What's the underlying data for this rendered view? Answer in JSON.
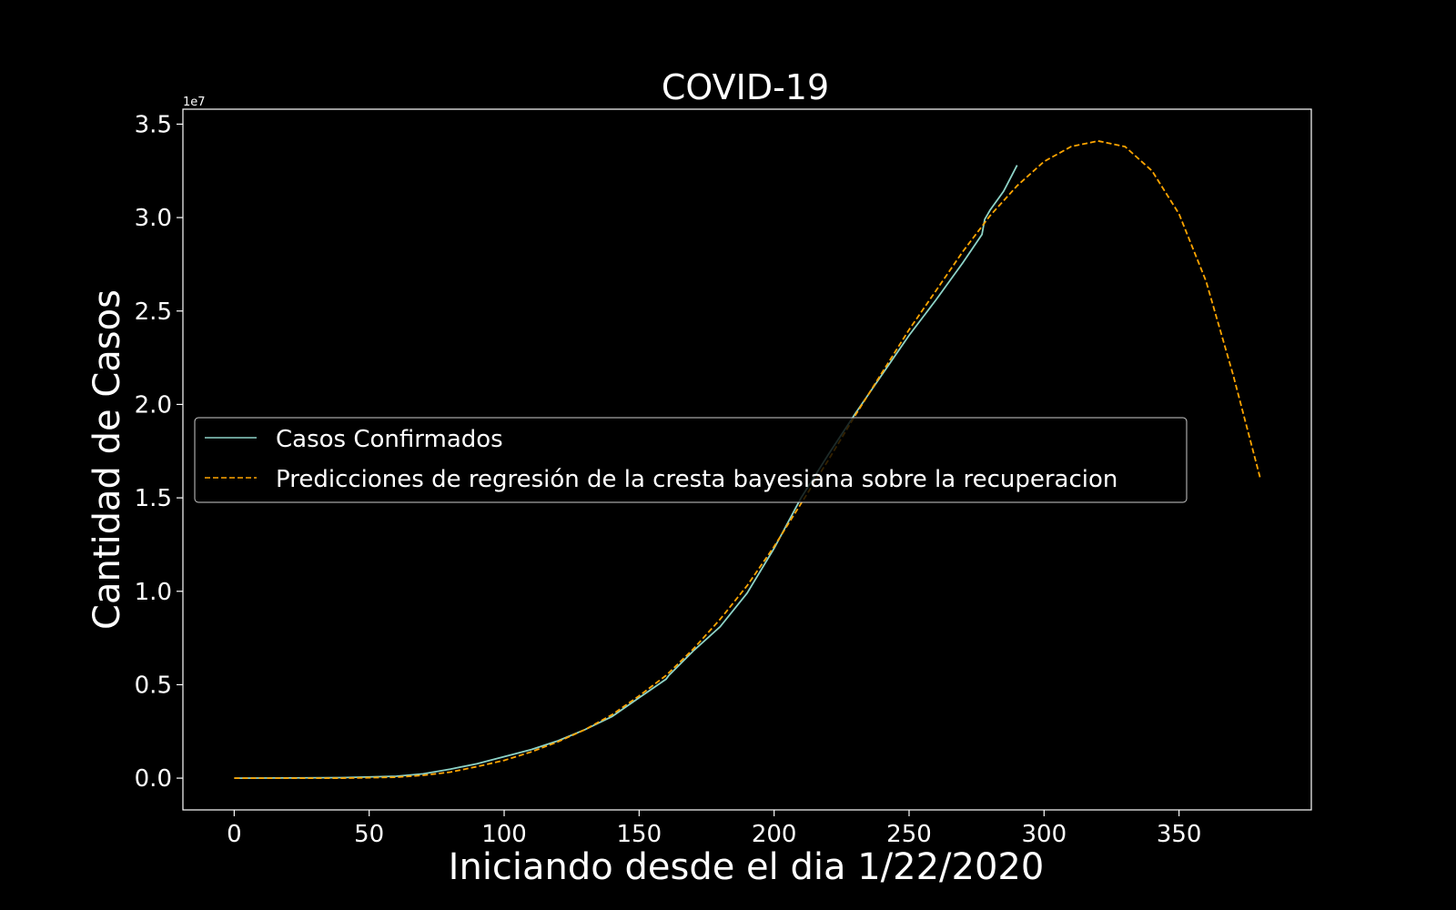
{
  "chart_data": {
    "type": "line",
    "title": "COVID-19",
    "xlabel": "Iniciando desde el dia 1/22/2020",
    "ylabel": "Cantidad de Casos",
    "y_offset_label": "1e7",
    "xlim": [
      -19,
      399
    ],
    "ylim": [
      -1.7,
      35.8
    ],
    "y_scale_factor": 10000000,
    "x_ticks": [
      0,
      50,
      100,
      150,
      200,
      250,
      300,
      350
    ],
    "x_tick_labels": [
      "0",
      "50",
      "100",
      "150",
      "200",
      "250",
      "300",
      "350"
    ],
    "y_ticks": [
      0,
      5,
      10,
      15,
      20,
      25,
      30,
      35
    ],
    "y_tick_labels": [
      "0.0",
      "0.5",
      "1.0",
      "1.5",
      "2.0",
      "2.5",
      "3.0",
      "3.5"
    ],
    "grid": false,
    "legend_position": "center-left",
    "series": [
      {
        "name": "Casos Confirmados",
        "style": "solid",
        "color": "#8dd3c7",
        "x": [
          0,
          20,
          40,
          60,
          70,
          80,
          90,
          100,
          110,
          120,
          130,
          140,
          150,
          160,
          161,
          170,
          180,
          190,
          200,
          210,
          220,
          230,
          240,
          250,
          260,
          270,
          277,
          278,
          280,
          285,
          290
        ],
        "y": [
          0,
          0.01,
          0.03,
          0.1,
          0.23,
          0.48,
          0.77,
          1.15,
          1.53,
          2.0,
          2.6,
          3.3,
          4.3,
          5.3,
          5.5,
          6.8,
          8.1,
          9.9,
          12.3,
          15.0,
          17.3,
          19.5,
          21.6,
          23.7,
          25.6,
          27.6,
          29.1,
          29.9,
          30.4,
          31.4,
          32.8
        ]
      },
      {
        "name": "Predicciones de regresión de la cresta bayesiana sobre la recuperacion",
        "style": "dashed",
        "color": "#ffa500",
        "x": [
          0,
          20,
          40,
          60,
          70,
          80,
          90,
          100,
          110,
          120,
          130,
          140,
          150,
          160,
          170,
          180,
          190,
          200,
          210,
          220,
          230,
          240,
          250,
          260,
          270,
          280,
          290,
          300,
          310,
          320,
          330,
          340,
          350,
          360,
          370,
          380
        ],
        "y": [
          0,
          0,
          0,
          0.05,
          0.15,
          0.32,
          0.62,
          0.95,
          1.4,
          1.95,
          2.6,
          3.4,
          4.4,
          5.5,
          6.9,
          8.5,
          10.3,
          12.4,
          14.7,
          17.0,
          19.4,
          21.7,
          24.0,
          26.1,
          28.2,
          30.1,
          31.7,
          33.0,
          33.8,
          34.1,
          33.8,
          32.5,
          30.2,
          26.6,
          21.6,
          16.1
        ]
      }
    ]
  }
}
